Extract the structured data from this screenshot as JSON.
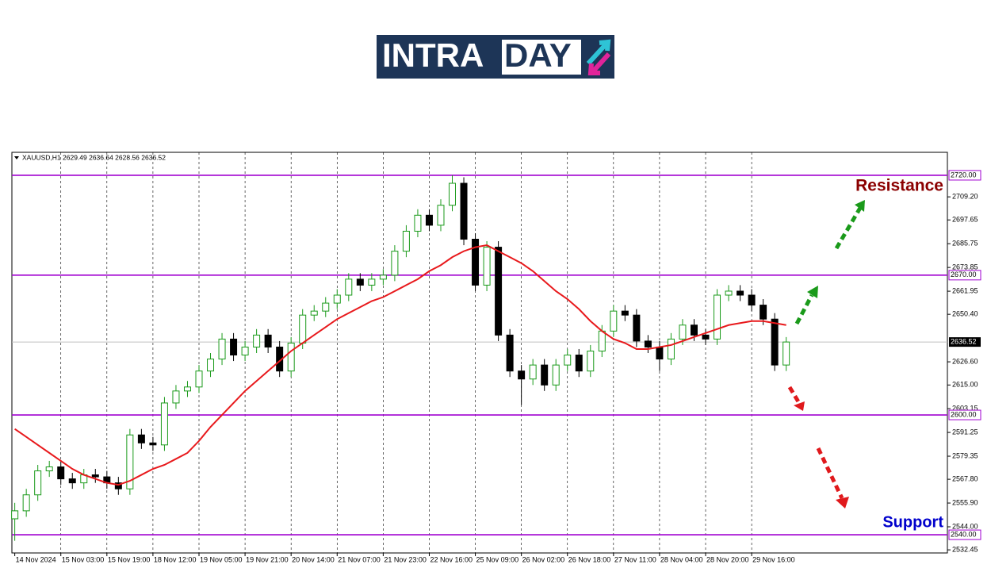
{
  "logo": {
    "left": "INTRA",
    "right": "DAY"
  },
  "chart_data": {
    "type": "candlestick",
    "header": "XAUUSD,H1  2629.49 2636.64 2628.56 2636.52",
    "x": [
      0,
      4,
      8,
      12,
      16,
      20,
      24,
      28,
      32,
      36,
      40,
      44,
      48,
      52,
      56,
      60,
      64,
      68,
      72,
      76,
      80,
      84,
      88,
      92,
      96,
      100,
      104,
      108,
      112,
      116,
      120,
      124,
      128,
      132,
      136,
      140,
      144,
      148,
      152,
      156,
      160,
      164,
      168,
      172,
      176,
      180,
      184,
      188,
      192,
      196,
      200,
      204,
      208,
      212,
      216,
      220,
      224,
      228,
      232,
      236,
      240,
      244,
      248,
      252,
      256,
      260,
      264,
      268
    ],
    "open": [
      2548,
      2552,
      2560,
      2572,
      2574,
      2568,
      2566,
      2570,
      2569,
      2566,
      2563,
      2590,
      2586,
      2585,
      2606,
      2612,
      2614,
      2622,
      2628,
      2638,
      2630,
      2634,
      2640,
      2634,
      2622,
      2636,
      2650,
      2652,
      2656,
      2660,
      2668,
      2665,
      2668,
      2670,
      2682,
      2692,
      2700,
      2695,
      2705,
      2716,
      2688,
      2665,
      2684,
      2640,
      2622,
      2618,
      2625,
      2615,
      2625,
      2630,
      2622,
      2632,
      2642,
      2652,
      2650,
      2637,
      2634,
      2628,
      2638,
      2645,
      2640,
      2638,
      2660,
      2662,
      2660,
      2655,
      2648,
      2625
    ],
    "high": [
      2556,
      2563,
      2575,
      2577,
      2577,
      2571,
      2573,
      2573,
      2572,
      2569,
      2593,
      2593,
      2589,
      2609,
      2615,
      2617,
      2625,
      2631,
      2641,
      2641,
      2637,
      2643,
      2643,
      2637,
      2639,
      2653,
      2655,
      2659,
      2663,
      2671,
      2671,
      2671,
      2673,
      2685,
      2695,
      2703,
      2703,
      2708,
      2720,
      2719,
      2691,
      2687,
      2687,
      2643,
      2625,
      2628,
      2628,
      2628,
      2633,
      2633,
      2635,
      2645,
      2655,
      2655,
      2653,
      2640,
      2637,
      2641,
      2648,
      2648,
      2643,
      2663,
      2665,
      2665,
      2663,
      2658,
      2651,
      2639
    ],
    "low": [
      2537,
      2549,
      2557,
      2569,
      2565,
      2563,
      2563,
      2566,
      2563,
      2560,
      2560,
      2583,
      2582,
      2582,
      2603,
      2609,
      2611,
      2619,
      2625,
      2627,
      2627,
      2631,
      2631,
      2619,
      2619,
      2633,
      2647,
      2649,
      2653,
      2657,
      2662,
      2662,
      2665,
      2667,
      2679,
      2689,
      2692,
      2692,
      2702,
      2685,
      2662,
      2662,
      2637,
      2619,
      2605,
      2615,
      2612,
      2612,
      2622,
      2619,
      2619,
      2629,
      2639,
      2647,
      2634,
      2631,
      2622,
      2625,
      2635,
      2637,
      2635,
      2635,
      2657,
      2657,
      2652,
      2645,
      2622,
      2622
    ],
    "close": [
      2552,
      2560,
      2572,
      2574,
      2568,
      2566,
      2570,
      2569,
      2566,
      2563,
      2590,
      2586,
      2585,
      2606,
      2612,
      2614,
      2622,
      2628,
      2638,
      2630,
      2634,
      2640,
      2634,
      2622,
      2636,
      2650,
      2652,
      2656,
      2660,
      2668,
      2665,
      2668,
      2670,
      2682,
      2692,
      2700,
      2695,
      2705,
      2716,
      2688,
      2665,
      2684,
      2640,
      2622,
      2618,
      2625,
      2615,
      2625,
      2630,
      2622,
      2632,
      2642,
      2652,
      2650,
      2637,
      2634,
      2628,
      2638,
      2645,
      2640,
      2638,
      2660,
      2662,
      2660,
      2655,
      2648,
      2625,
      2636.52
    ],
    "up_color": "#1a9a1a",
    "down_color": "#000000",
    "ma": {
      "color": "#e8191c",
      "values": [
        2593,
        2589,
        2585,
        2581,
        2577,
        2573,
        2570,
        2568,
        2566,
        2565,
        2567,
        2570,
        2573,
        2575,
        2578,
        2581,
        2587,
        2594,
        2600,
        2606,
        2612,
        2617,
        2622,
        2627,
        2632,
        2636,
        2640,
        2644,
        2648,
        2651,
        2654,
        2657,
        2659,
        2662,
        2665,
        2668,
        2672,
        2675,
        2679,
        2682,
        2684,
        2685,
        2682,
        2679,
        2676,
        2672,
        2667,
        2662,
        2658,
        2653,
        2647,
        2642,
        2638,
        2636,
        2633,
        2633,
        2634,
        2635,
        2637,
        2639,
        2641,
        2643,
        2645,
        2646,
        2647,
        2647,
        2646,
        2645
      ]
    },
    "xlim": [
      -1,
      324
    ],
    "xticks": [
      {
        "value": 0,
        "label": "14 Nov 2024"
      },
      {
        "value": 16,
        "label": "15 Nov 03:00"
      },
      {
        "value": 32,
        "label": "15 Nov 19:00"
      },
      {
        "value": 48,
        "label": "18 Nov 12:00"
      },
      {
        "value": 64,
        "label": "19 Nov 05:00"
      },
      {
        "value": 80,
        "label": "19 Nov 21:00"
      },
      {
        "value": 96,
        "label": "20 Nov 14:00"
      },
      {
        "value": 112,
        "label": "21 Nov 07:00"
      },
      {
        "value": 128,
        "label": "21 Nov 23:00"
      },
      {
        "value": 144,
        "label": "22 Nov 16:00"
      },
      {
        "value": 160,
        "label": "25 Nov 09:00"
      },
      {
        "value": 176,
        "label": "26 Nov 02:00"
      },
      {
        "value": 192,
        "label": "26 Nov 18:00"
      },
      {
        "value": 208,
        "label": "27 Nov 11:00"
      },
      {
        "value": 224,
        "label": "28 Nov 04:00"
      },
      {
        "value": 240,
        "label": "28 Nov 20:00"
      },
      {
        "value": 256,
        "label": "29 Nov 16:00"
      }
    ],
    "ylim": [
      2530.9,
      2731.5
    ],
    "yticks": [
      {
        "value": 2532.45,
        "label": "2532.45"
      },
      {
        "value": 2544,
        "label": "2544.00"
      },
      {
        "value": 2555.9,
        "label": "2555.90"
      },
      {
        "value": 2567.8,
        "label": "2567.80"
      },
      {
        "value": 2579.35,
        "label": "2579.35"
      },
      {
        "value": 2591.25,
        "label": "2591.25"
      },
      {
        "value": 2603.15,
        "label": "2603.15"
      },
      {
        "value": 2615,
        "label": "2615.00"
      },
      {
        "value": 2626.6,
        "label": "2626.60"
      },
      {
        "value": 2650.4,
        "label": "2650.40"
      },
      {
        "value": 2661.95,
        "label": "2661.95"
      },
      {
        "value": 2673.85,
        "label": "2673.85"
      },
      {
        "value": 2685.75,
        "label": "2685.75"
      },
      {
        "value": 2697.65,
        "label": "2697.65"
      },
      {
        "value": 2709.2,
        "label": "2709.20"
      }
    ],
    "levels": [
      {
        "value": 2720,
        "label": "2720.00"
      },
      {
        "value": 2670,
        "label": "2670.00"
      },
      {
        "value": 2600,
        "label": "2600.00"
      },
      {
        "value": 2540,
        "label": "2540.00"
      }
    ],
    "level_color": "#a000d0",
    "current_price": {
      "value": 2636.52,
      "label": "2636.52"
    },
    "annotations": {
      "resistance": "Resistance",
      "support": "Support"
    },
    "grid": true
  }
}
